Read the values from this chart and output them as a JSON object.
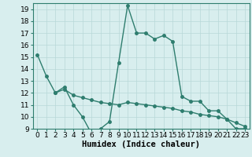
{
  "line1_x": [
    0,
    1,
    2,
    3,
    4,
    5,
    6,
    7,
    8,
    9,
    10,
    11,
    12,
    13,
    14,
    15,
    16,
    17,
    18,
    19,
    20,
    21,
    22,
    23
  ],
  "line1_y": [
    15.2,
    13.4,
    12.0,
    12.5,
    11.0,
    10.0,
    8.6,
    9.0,
    9.6,
    14.5,
    19.3,
    17.0,
    17.0,
    16.5,
    16.8,
    16.3,
    11.7,
    11.3,
    11.3,
    10.5,
    10.5,
    9.8,
    9.0,
    9.0
  ],
  "line2_x": [
    2,
    3,
    4,
    5,
    6,
    7,
    8,
    9,
    10,
    11,
    12,
    13,
    14,
    15,
    16,
    17,
    18,
    19,
    20,
    21,
    22,
    23
  ],
  "line2_y": [
    12.0,
    12.3,
    11.8,
    11.6,
    11.4,
    11.2,
    11.1,
    11.0,
    11.2,
    11.1,
    11.0,
    10.9,
    10.8,
    10.7,
    10.5,
    10.4,
    10.2,
    10.1,
    10.0,
    9.8,
    9.5,
    9.2
  ],
  "line_color": "#2e7d6e",
  "bg_color": "#d8eeee",
  "grid_color": "#b8d8d8",
  "xlabel": "Humidex (Indice chaleur)",
  "ylim": [
    9,
    19.5
  ],
  "xlim": [
    -0.5,
    23.5
  ],
  "yticks": [
    9,
    10,
    11,
    12,
    13,
    14,
    15,
    16,
    17,
    18,
    19
  ],
  "xticks": [
    0,
    1,
    2,
    3,
    4,
    5,
    6,
    7,
    8,
    9,
    10,
    11,
    12,
    13,
    14,
    15,
    16,
    17,
    18,
    19,
    20,
    21,
    22,
    23
  ],
  "xlabel_fontsize": 7.5,
  "tick_fontsize": 6.5,
  "marker_size": 2.5,
  "line_width": 1.0
}
